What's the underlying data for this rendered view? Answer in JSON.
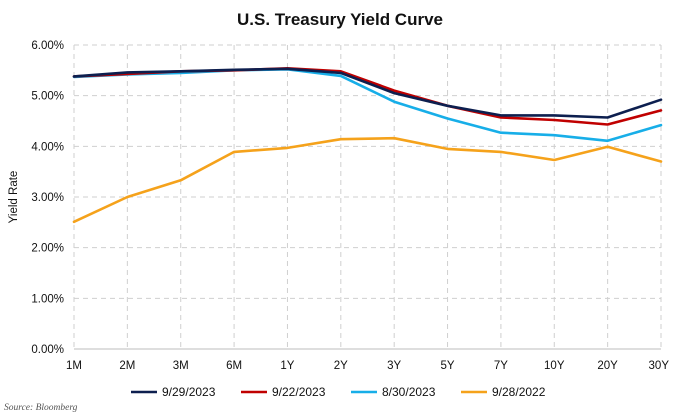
{
  "chart_data": {
    "type": "line",
    "title": "U.S. Treasury Yield Curve",
    "xlabel": "",
    "ylabel": "Yield Rate",
    "categories": [
      "1M",
      "2M",
      "3M",
      "6M",
      "1Y",
      "2Y",
      "3Y",
      "5Y",
      "7Y",
      "10Y",
      "20Y",
      "30Y"
    ],
    "ylim": [
      0,
      6
    ],
    "yticks": [
      0,
      1,
      2,
      3,
      4,
      5,
      6
    ],
    "ytick_labels": [
      "0.00%",
      "1.00%",
      "2.00%",
      "3.00%",
      "4.00%",
      "5.00%",
      "6.00%"
    ],
    "grid": true,
    "legend_position": "bottom",
    "series": [
      {
        "name": "9/29/2023",
        "color": "#0d1f4f",
        "values": [
          5.38,
          5.46,
          5.48,
          5.51,
          5.53,
          5.45,
          5.05,
          4.8,
          4.61,
          4.61,
          4.57,
          4.92
        ]
      },
      {
        "name": "9/22/2023",
        "color": "#c00000",
        "values": [
          5.38,
          5.43,
          5.48,
          5.5,
          5.54,
          5.48,
          5.1,
          4.8,
          4.57,
          4.52,
          4.43,
          4.71
        ]
      },
      {
        "name": "8/30/2023",
        "color": "#17aee8",
        "values": [
          5.37,
          5.42,
          5.45,
          5.5,
          5.52,
          5.39,
          4.88,
          4.55,
          4.27,
          4.22,
          4.11,
          4.42
        ]
      },
      {
        "name": "9/28/2022",
        "color": "#f5a21b",
        "values": [
          2.51,
          3.0,
          3.33,
          3.89,
          3.97,
          4.14,
          4.16,
          3.95,
          3.89,
          3.73,
          3.99,
          3.7
        ]
      }
    ]
  },
  "source_note": "Source: Bloomberg"
}
